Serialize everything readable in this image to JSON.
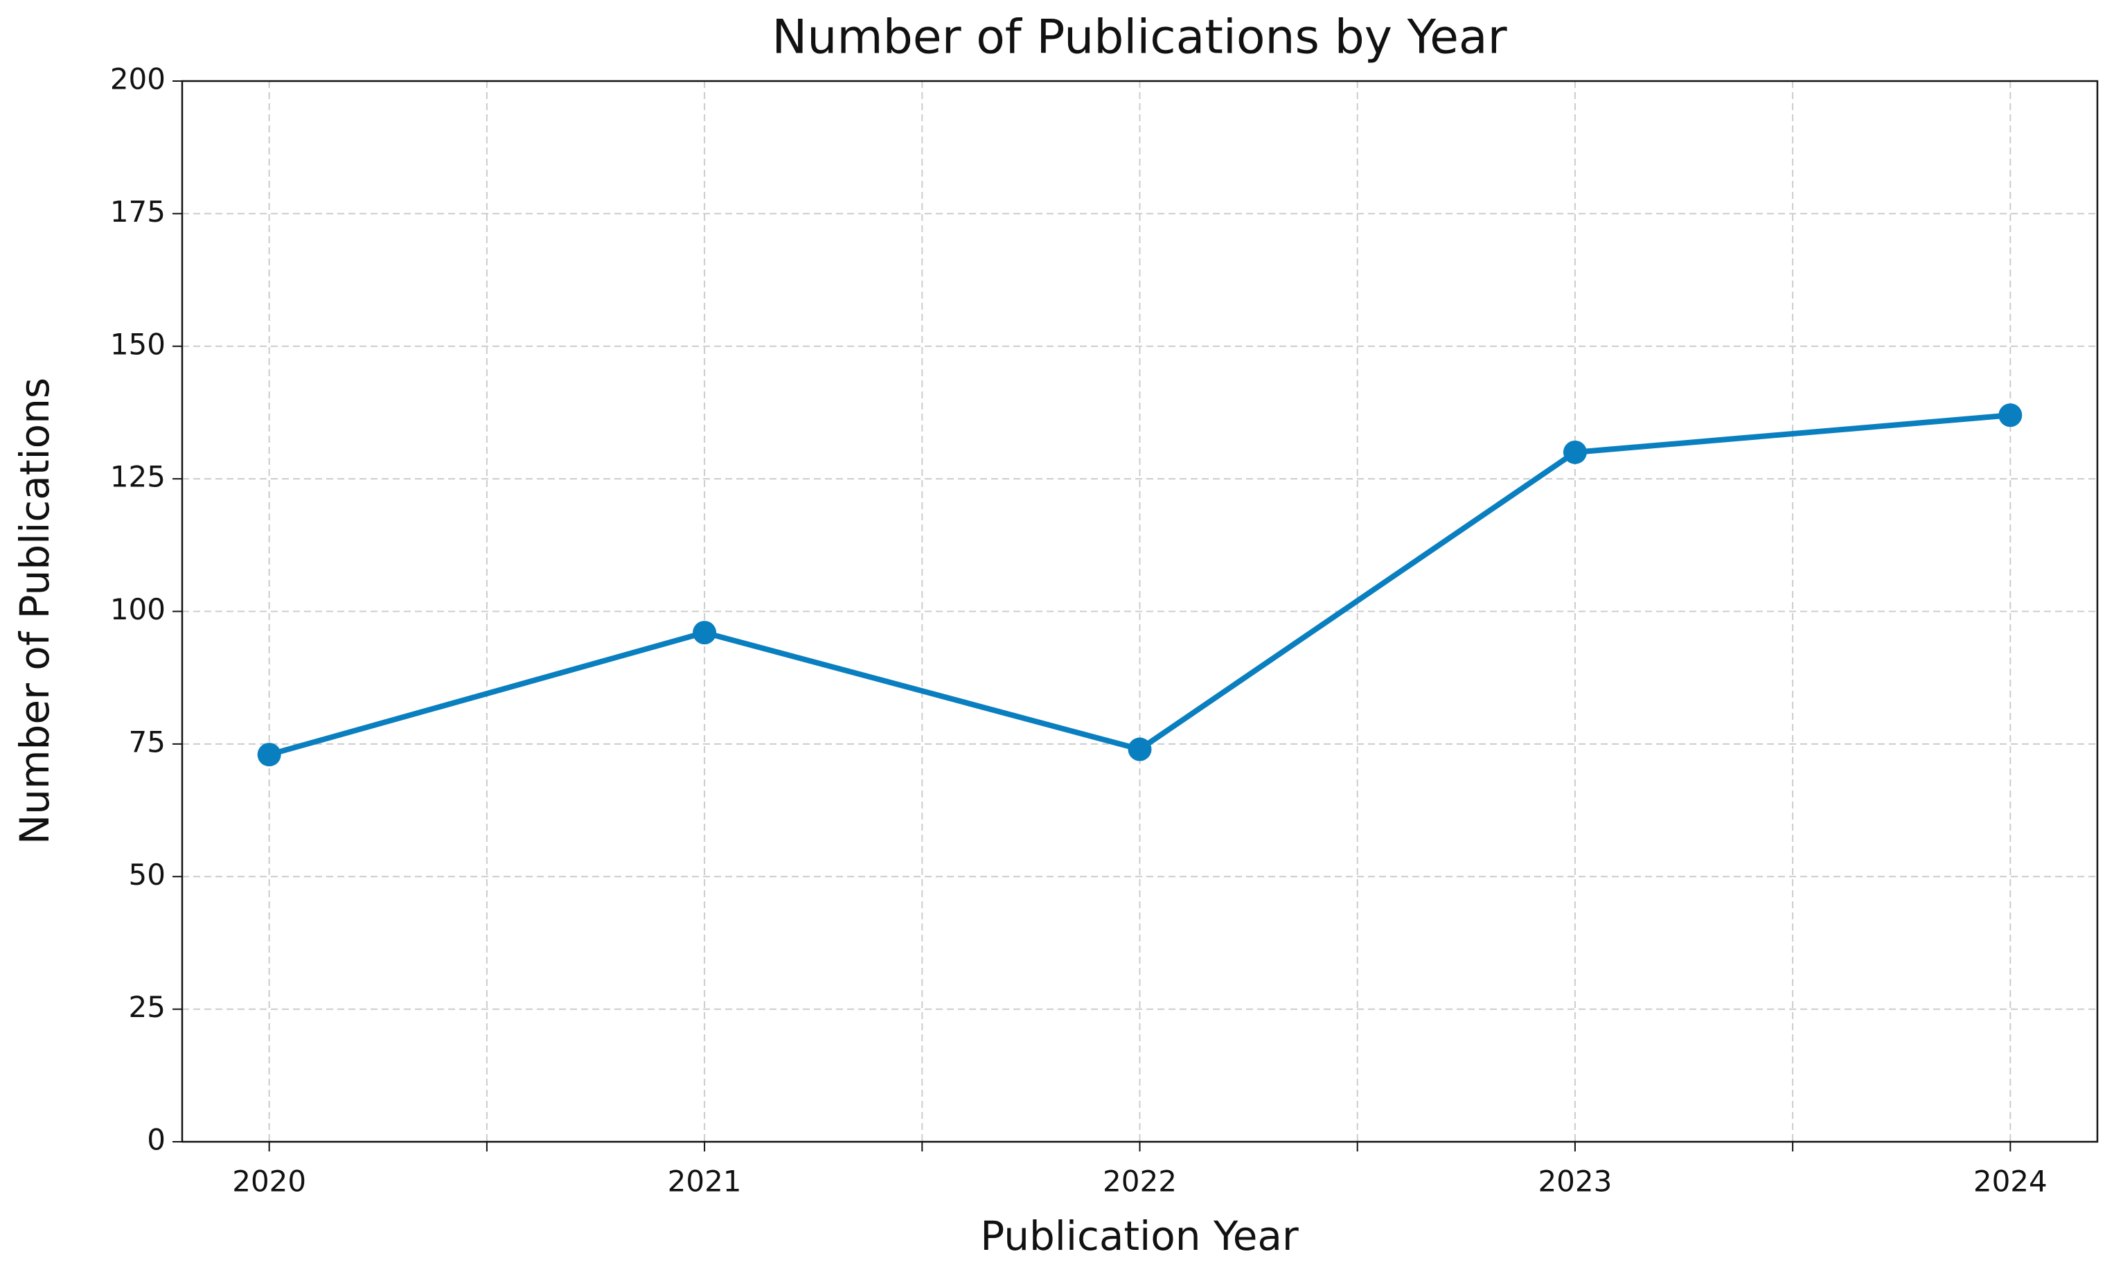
{
  "chart_data": {
    "type": "line",
    "title": "Number of Publications by Year",
    "x_label": "Publication Year",
    "y_label": "Number of Publications",
    "series": [
      {
        "name": "Number of Publications",
        "color": "#0a7fc0",
        "x": [
          2020,
          2021,
          2022,
          2023,
          2024
        ],
        "values": [
          73,
          96,
          74,
          130,
          137
        ]
      }
    ],
    "xlim": [
      2019.8,
      2024.2
    ],
    "xticks": [
      2020,
      2021,
      2022,
      2023,
      2024
    ],
    "xminor_ticks": [
      2020.5,
      2021.5,
      2022.5,
      2023.5
    ],
    "ylim": [
      0,
      200
    ],
    "yticks": [
      0,
      25,
      50,
      75,
      100,
      125,
      150,
      175,
      200
    ],
    "grid": true
  }
}
